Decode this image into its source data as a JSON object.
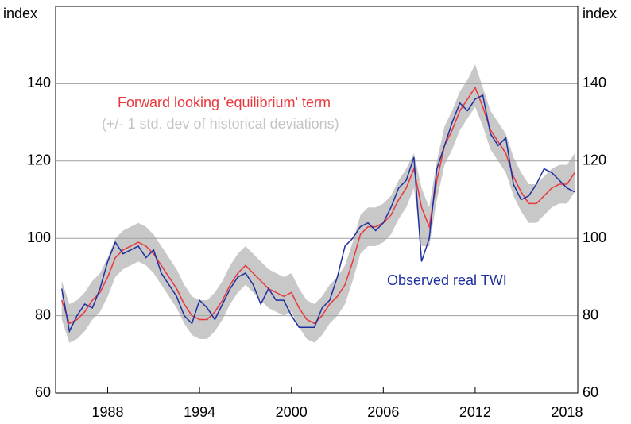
{
  "chart_data": {
    "type": "line",
    "y_label": "index",
    "y2_label": "index",
    "annotations": [
      {
        "text": "Forward looking 'equilibrium' term",
        "color": "#e8383d"
      },
      {
        "text": "(+/- 1 std. dev of historical deviations)",
        "color": "#c4c4c4"
      },
      {
        "text": "Observed real TWI",
        "color": "#1f2fa0"
      }
    ],
    "x": [
      1985,
      1985.5,
      1986,
      1986.5,
      1987,
      1987.5,
      1988,
      1988.5,
      1989,
      1989.5,
      1990,
      1990.5,
      1991,
      1991.5,
      1992,
      1992.5,
      1993,
      1993.5,
      1994,
      1994.5,
      1995,
      1995.5,
      1996,
      1996.5,
      1997,
      1997.5,
      1998,
      1998.5,
      1999,
      1999.5,
      2000,
      2000.5,
      2001,
      2001.5,
      2002,
      2002.5,
      2003,
      2003.5,
      2004,
      2004.5,
      2005,
      2005.5,
      2006,
      2006.5,
      2007,
      2007.5,
      2008,
      2008.5,
      2009,
      2009.5,
      2010,
      2010.5,
      2011,
      2011.5,
      2012,
      2012.5,
      2013,
      2013.5,
      2014,
      2014.5,
      2015,
      2015.5,
      2016,
      2016.5,
      2017,
      2017.5,
      2018,
      2018.5
    ],
    "band": {
      "color": "#c8c8c8",
      "upper": [
        89,
        83,
        84,
        86,
        89,
        91,
        95,
        100,
        102,
        103,
        104,
        103,
        101,
        98,
        95,
        92,
        88,
        85,
        84,
        84,
        86,
        89,
        93,
        96,
        98,
        96,
        94,
        92,
        91,
        90,
        91,
        87,
        84,
        83,
        85,
        88,
        90,
        93,
        99,
        106,
        108,
        108,
        109,
        111,
        115,
        118,
        122,
        113,
        108,
        120,
        129,
        133,
        138,
        141,
        145,
        139,
        133,
        130,
        127,
        121,
        117,
        114,
        114,
        116,
        118,
        119,
        119,
        122
      ],
      "lower": [
        79,
        73,
        74,
        76,
        79,
        81,
        85,
        90,
        92,
        93,
        94,
        93,
        91,
        88,
        85,
        82,
        78,
        75,
        74,
        74,
        76,
        79,
        83,
        86,
        88,
        86,
        84,
        82,
        81,
        80,
        81,
        77,
        74,
        73,
        75,
        78,
        80,
        83,
        89,
        96,
        98,
        98,
        99,
        101,
        105,
        108,
        113,
        98,
        98,
        110,
        119,
        123,
        128,
        131,
        134,
        129,
        123,
        120,
        117,
        111,
        107,
        104,
        104,
        106,
        108,
        109,
        109,
        112
      ]
    },
    "series": [
      {
        "color": "#e8383d",
        "values": [
          84,
          78,
          79,
          81,
          84,
          86,
          90,
          95,
          97,
          98,
          99,
          98,
          96,
          93,
          90,
          87,
          83,
          80,
          79,
          79,
          81,
          84,
          88,
          91,
          93,
          91,
          89,
          87,
          86,
          85,
          86,
          82,
          79,
          78,
          80,
          83,
          85,
          88,
          94,
          101,
          103,
          103,
          104,
          106,
          110,
          113,
          118,
          108,
          103,
          115,
          124,
          128,
          133,
          136,
          139,
          134,
          128,
          125,
          122,
          116,
          112,
          109,
          109,
          111,
          113,
          114,
          114,
          117
        ]
      },
      {
        "color": "#1f2fa0",
        "values": [
          87,
          76,
          80,
          83,
          82,
          87,
          94,
          99,
          96,
          97,
          98,
          95,
          97,
          91,
          88,
          85,
          80,
          78,
          84,
          82,
          79,
          83,
          87,
          90,
          91,
          88,
          83,
          87,
          84,
          84,
          80,
          77,
          77,
          77,
          82,
          84,
          90,
          98,
          100,
          103,
          104,
          102,
          104,
          108,
          113,
          115,
          121,
          94,
          100,
          118,
          124,
          130,
          135,
          133,
          136,
          137,
          127,
          124,
          126,
          114,
          110,
          111,
          114,
          118,
          117,
          115,
          113,
          112
        ]
      }
    ],
    "xlim": [
      1984.6,
      2018.7
    ],
    "xticks": [
      1988,
      1994,
      2000,
      2006,
      2012,
      2018
    ],
    "ylim": [
      60,
      160
    ],
    "yticks": [
      60,
      80,
      100,
      120,
      140
    ],
    "y2lim": [
      60,
      160
    ],
    "y2ticks": [
      60,
      80,
      100,
      120,
      140
    ],
    "grid": true
  }
}
